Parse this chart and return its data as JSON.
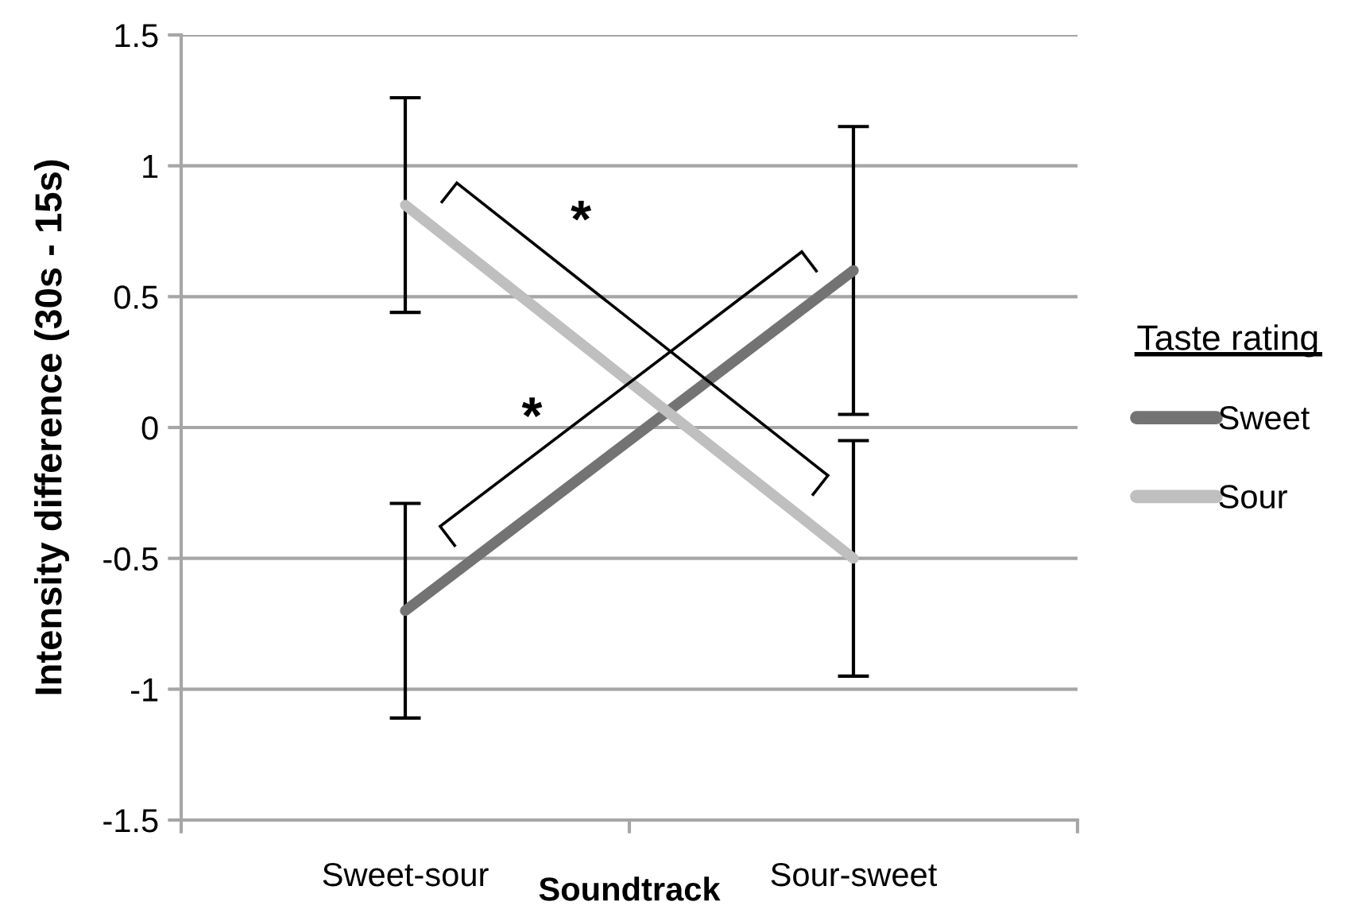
{
  "chart_data": {
    "type": "line",
    "xlabel": "Soundtrack",
    "ylabel": "Intensity difference (30s - 15s)",
    "legend_title": "Taste rating",
    "categories": [
      "Sweet-sour",
      "Sour-sweet"
    ],
    "series": [
      {
        "name": "Sweet",
        "color": "#737373",
        "values": [
          -0.7,
          0.6
        ],
        "errors": [
          0.41,
          0.55
        ]
      },
      {
        "name": "Sour",
        "color": "#bfbfbf",
        "values": [
          0.85,
          -0.5
        ],
        "errors": [
          0.41,
          0.45
        ]
      }
    ],
    "ylim": [
      -1.5,
      1.5
    ],
    "yticks": [
      -1.5,
      -1,
      -0.5,
      0,
      0.5,
      1,
      1.5
    ],
    "grid": "y",
    "legend": "right",
    "line_style": "solid",
    "annotations": [
      "*",
      "*"
    ]
  }
}
